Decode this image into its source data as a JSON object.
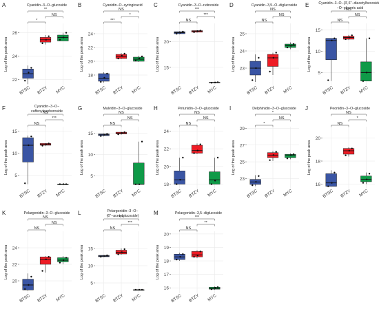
{
  "chart_data": [
    {
      "type": "boxplot",
      "letter": "A",
      "title": [
        "Cyanidin−3−O−glucoside"
      ],
      "ylabel": "Log of the peak area",
      "categories": [
        "BTSC",
        "BTZY",
        "MYC"
      ],
      "ylim": [
        21.5,
        26.8
      ],
      "yticks": [
        22,
        24,
        26
      ],
      "boxes": [
        {
          "q1": 22.1,
          "median": 22.5,
          "q3": 22.9,
          "min": 21.6,
          "max": 23.2,
          "points": [
            21.9,
            22.6,
            23.0
          ]
        },
        {
          "q1": 25.2,
          "median": 25.4,
          "q3": 25.6,
          "min": 25.0,
          "max": 25.8,
          "points": [
            25.1,
            25.4,
            25.7
          ]
        },
        {
          "q1": 25.3,
          "median": 25.6,
          "q3": 25.8,
          "min": 25.3,
          "max": 26.0,
          "points": [
            25.4,
            25.6,
            26.0
          ]
        }
      ],
      "sig": [
        {
          "a": 0,
          "b": 1,
          "label": "*",
          "level": 0
        },
        {
          "a": 1,
          "b": 2,
          "label": "NS",
          "level": 1
        },
        {
          "a": 0,
          "b": 2,
          "label": "**",
          "level": 2
        }
      ]
    },
    {
      "type": "boxplot",
      "letter": "B",
      "title": [
        "Cyanidin−O−syringicacid"
      ],
      "ylabel": "Log of the peak area",
      "categories": [
        "BTSC",
        "BTZY",
        "MYC"
      ],
      "ylim": [
        16.5,
        25.5
      ],
      "yticks": [
        18,
        20,
        22,
        24
      ],
      "boxes": [
        {
          "q1": 17.1,
          "median": 17.5,
          "q3": 18.2,
          "min": 16.9,
          "max": 18.4,
          "points": [
            17.0,
            17.6,
            18.2
          ]
        },
        {
          "q1": 20.4,
          "median": 20.7,
          "q3": 21.0,
          "min": 20.3,
          "max": 21.2,
          "points": [
            20.4,
            20.8,
            21.1
          ]
        },
        {
          "q1": 20.0,
          "median": 20.3,
          "q3": 20.6,
          "min": 19.9,
          "max": 20.8,
          "points": [
            20.1,
            20.4,
            20.7
          ]
        }
      ],
      "sig": [
        {
          "a": 0,
          "b": 1,
          "label": "***",
          "level": 0
        },
        {
          "a": 1,
          "b": 2,
          "label": "*",
          "level": 1
        },
        {
          "a": 0,
          "b": 2,
          "label": "NS",
          "level": 2
        }
      ]
    },
    {
      "type": "boxplot",
      "letter": "C",
      "title": [
        "Cyanidin−3−O−rutinoside"
      ],
      "ylabel": "Log of the peak area",
      "categories": [
        "BTSC",
        "BTZY",
        "MYC"
      ],
      "ylim": [
        11.5,
        23.5
      ],
      "yticks": [
        15,
        20
      ],
      "boxes": [
        {
          "q1": 21.5,
          "median": 21.7,
          "q3": 21.9,
          "min": 21.4,
          "max": 22.0,
          "points": [
            21.5,
            21.7,
            21.9
          ]
        },
        {
          "q1": 21.8,
          "median": 22.0,
          "q3": 22.1,
          "min": 21.7,
          "max": 22.2,
          "points": [
            21.8,
            22.0,
            22.1
          ]
        },
        {
          "q1": 12.0,
          "median": 12.05,
          "q3": 12.1,
          "min": 12.0,
          "max": 12.1,
          "points": [
            12.0,
            12.05,
            12.1
          ]
        }
      ],
      "sig": [
        {
          "a": 0,
          "b": 1,
          "label": "NS",
          "level": 0
        },
        {
          "a": 1,
          "b": 2,
          "label": "***",
          "level": 1
        },
        {
          "a": 0,
          "b": 2,
          "label": "***",
          "level": 2
        }
      ]
    },
    {
      "type": "boxplot",
      "letter": "D",
      "title": [
        "Cyanidin−3,5−O−diglucoside"
      ],
      "ylabel": "Log of the peak area",
      "categories": [
        "BTSC",
        "BTZY",
        "MYC"
      ],
      "ylim": [
        22.0,
        25.6
      ],
      "yticks": [
        23,
        24,
        25
      ],
      "boxes": [
        {
          "q1": 22.6,
          "median": 23.0,
          "q3": 23.4,
          "min": 22.2,
          "max": 23.8,
          "points": [
            22.3,
            23.0,
            23.6
          ]
        },
        {
          "q1": 23.1,
          "median": 23.6,
          "q3": 23.8,
          "min": 22.6,
          "max": 23.9,
          "points": [
            22.8,
            23.6,
            23.9
          ]
        },
        {
          "q1": 24.2,
          "median": 24.3,
          "q3": 24.4,
          "min": 24.1,
          "max": 24.5,
          "points": [
            24.2,
            24.3,
            24.4
          ]
        }
      ],
      "sig": [
        {
          "a": 0,
          "b": 1,
          "label": "NS",
          "level": 0
        },
        {
          "a": 1,
          "b": 2,
          "label": "NS",
          "level": 1
        },
        {
          "a": 0,
          "b": 2,
          "label": "NS",
          "level": 2
        }
      ]
    },
    {
      "type": "boxplot",
      "letter": "E",
      "title": [
        "Cyanidin−3−O−(3',6''−diacetylhexoside)",
        "−O−glyceric acid"
      ],
      "ylabel": "Log of the peak area",
      "categories": [
        "BTSC",
        "BTZY",
        "MYC"
      ],
      "ylim": [
        2.0,
        16.5
      ],
      "yticks": [
        5,
        10,
        15
      ],
      "boxes": [
        {
          "q1": 8.0,
          "median": 12.5,
          "q3": 13.0,
          "min": 3.0,
          "max": 13.0,
          "points": [
            3.2,
            12.5,
            13.0
          ]
        },
        {
          "q1": 12.8,
          "median": 13.2,
          "q3": 13.5,
          "min": 12.6,
          "max": 13.8,
          "points": [
            12.8,
            13.2,
            13.7
          ]
        },
        {
          "q1": 3.0,
          "median": 5.0,
          "q3": 7.5,
          "min": 3.0,
          "max": 13.0,
          "points": [
            3.0,
            5.0,
            13.0
          ]
        }
      ],
      "sig": [
        {
          "a": 0,
          "b": 1,
          "label": "NS",
          "level": 0
        },
        {
          "a": 1,
          "b": 2,
          "label": "NS",
          "level": 1
        },
        {
          "a": 0,
          "b": 2,
          "label": "NS",
          "level": 2
        }
      ]
    },
    {
      "type": "boxplot",
      "letter": "F",
      "title": [
        "Cyanidin−3−O−",
        "caffeoylsophoroside"
      ],
      "ylabel": "Log of the peak area",
      "categories": [
        "BTSC",
        "BTZY",
        "MYC"
      ],
      "ylim": [
        2.0,
        16.0
      ],
      "yticks": [
        5,
        10,
        15
      ],
      "boxes": [
        {
          "q1": 8.0,
          "median": 11.8,
          "q3": 13.5,
          "min": 3.0,
          "max": 14.0,
          "points": [
            3.2,
            11.8,
            13.8
          ]
        },
        {
          "q1": 11.8,
          "median": 12.0,
          "q3": 12.2,
          "min": 11.6,
          "max": 12.3,
          "points": [
            11.7,
            12.0,
            12.2
          ]
        },
        {
          "q1": 3.0,
          "median": 3.0,
          "q3": 3.0,
          "min": 3.0,
          "max": 3.0,
          "points": [
            3.0,
            3.0,
            3.0
          ]
        }
      ],
      "sig": [
        {
          "a": 0,
          "b": 1,
          "label": "NS",
          "level": 0
        },
        {
          "a": 1,
          "b": 2,
          "label": "***",
          "level": 1
        },
        {
          "a": 0,
          "b": 2,
          "label": "NS",
          "level": 2
        }
      ]
    },
    {
      "type": "boxplot",
      "letter": "G",
      "title": [
        "Malvidin−3−O−glucoside"
      ],
      "ylabel": "Log of the peak area",
      "categories": [
        "BTSC",
        "BTZY",
        "MYC"
      ],
      "ylim": [
        2.0,
        16.5
      ],
      "yticks": [
        5,
        10,
        15
      ],
      "boxes": [
        {
          "q1": 14.4,
          "median": 14.6,
          "q3": 14.8,
          "min": 14.2,
          "max": 14.9,
          "points": [
            14.3,
            14.6,
            14.8
          ]
        },
        {
          "q1": 14.8,
          "median": 15.0,
          "q3": 15.2,
          "min": 14.6,
          "max": 15.3,
          "points": [
            14.7,
            15.0,
            15.2
          ]
        },
        {
          "q1": 3.0,
          "median": 3.0,
          "q3": 8.0,
          "min": 3.0,
          "max": 13.0,
          "points": [
            3.0,
            3.0,
            13.0
          ]
        }
      ],
      "sig": [
        {
          "a": 0,
          "b": 1,
          "label": "NS",
          "level": 0
        },
        {
          "a": 1,
          "b": 2,
          "label": "NS",
          "level": 1
        },
        {
          "a": 0,
          "b": 2,
          "label": "NS",
          "level": 2
        }
      ]
    },
    {
      "type": "boxplot",
      "letter": "H",
      "title": [
        "Petunidin−3−O−glucoside"
      ],
      "ylabel": "Log of the peak area",
      "categories": [
        "BTSC",
        "BTZY",
        "MYC"
      ],
      "ylim": [
        17.5,
        24.5
      ],
      "yticks": [
        18,
        20,
        22,
        24
      ],
      "boxes": [
        {
          "q1": 18.0,
          "median": 18.5,
          "q3": 19.5,
          "min": 18.0,
          "max": 21.0,
          "points": [
            18.0,
            18.5,
            21.0
          ]
        },
        {
          "q1": 21.5,
          "median": 21.8,
          "q3": 22.4,
          "min": 21.4,
          "max": 22.6,
          "points": [
            21.5,
            21.8,
            22.5
          ]
        },
        {
          "q1": 18.0,
          "median": 18.5,
          "q3": 19.4,
          "min": 18.0,
          "max": 21.0,
          "points": [
            18.0,
            18.4,
            21.0
          ]
        }
      ],
      "sig": [
        {
          "a": 0,
          "b": 1,
          "label": "NS",
          "level": 0
        },
        {
          "a": 1,
          "b": 2,
          "label": "NS",
          "level": 1
        },
        {
          "a": 0,
          "b": 2,
          "label": "NS",
          "level": 2
        }
      ]
    },
    {
      "type": "boxplot",
      "letter": "I",
      "title": [
        "Delphinidin−3−O−glucoside"
      ],
      "ylabel": "Log of the peak area",
      "categories": [
        "BTSC",
        "BTZY",
        "MYC"
      ],
      "ylim": [
        21.8,
        29.2
      ],
      "yticks": [
        23,
        25,
        27,
        29
      ],
      "boxes": [
        {
          "q1": 22.3,
          "median": 22.6,
          "q3": 22.9,
          "min": 22.1,
          "max": 23.4,
          "points": [
            22.2,
            22.6,
            23.3
          ]
        },
        {
          "q1": 25.5,
          "median": 25.8,
          "q3": 26.1,
          "min": 25.1,
          "max": 26.3,
          "points": [
            25.2,
            25.8,
            26.2
          ]
        },
        {
          "q1": 25.5,
          "median": 25.8,
          "q3": 25.9,
          "min": 25.3,
          "max": 26.0,
          "points": [
            25.4,
            25.8,
            25.9
          ]
        }
      ],
      "sig": [
        {
          "a": 0,
          "b": 1,
          "label": "*",
          "level": 0
        },
        {
          "a": 1,
          "b": 2,
          "label": "NS",
          "level": 1
        },
        {
          "a": 0,
          "b": 2,
          "label": "*",
          "level": 2
        }
      ]
    },
    {
      "type": "boxplot",
      "letter": "J",
      "title": [
        "Peonidin−3−O−glucoside"
      ],
      "ylabel": "Log of the peak area",
      "categories": [
        "BTSC",
        "BTZY",
        "MYC"
      ],
      "ylim": [
        15.6,
        21.0
      ],
      "yticks": [
        16,
        18,
        20
      ],
      "boxes": [
        {
          "q1": 15.8,
          "median": 16.1,
          "q3": 16.9,
          "min": 15.8,
          "max": 17.2,
          "points": [
            15.8,
            16.1,
            17.0
          ]
        },
        {
          "q1": 18.6,
          "median": 18.9,
          "q3": 19.1,
          "min": 18.4,
          "max": 19.2,
          "points": [
            18.5,
            18.9,
            19.1
          ]
        },
        {
          "q1": 16.2,
          "median": 16.4,
          "q3": 16.7,
          "min": 16.0,
          "max": 17.0,
          "points": [
            16.1,
            16.4,
            16.9
          ]
        }
      ],
      "sig": [
        {
          "a": 0,
          "b": 1,
          "label": "NS",
          "level": 0
        },
        {
          "a": 1,
          "b": 2,
          "label": "*",
          "level": 1
        },
        {
          "a": 0,
          "b": 2,
          "label": "NS",
          "level": 2
        }
      ]
    },
    {
      "type": "boxplot",
      "letter": "K",
      "title": [
        "Pelargonidin−3−O−glucoside"
      ],
      "ylabel": "Log of the peak area",
      "categories": [
        "BTSC",
        "BTZY",
        "MYC"
      ],
      "ylim": [
        18.5,
        26.0
      ],
      "yticks": [
        20,
        22,
        24
      ],
      "boxes": [
        {
          "q1": 18.9,
          "median": 19.5,
          "q3": 20.2,
          "min": 18.8,
          "max": 20.9,
          "points": [
            19.0,
            19.5,
            20.5
          ]
        },
        {
          "q1": 22.0,
          "median": 22.6,
          "q3": 22.9,
          "min": 21.0,
          "max": 23.0,
          "points": [
            21.2,
            22.6,
            22.9
          ]
        },
        {
          "q1": 22.3,
          "median": 22.5,
          "q3": 22.8,
          "min": 22.0,
          "max": 23.0,
          "points": [
            22.2,
            22.5,
            22.8
          ]
        }
      ],
      "sig": [
        {
          "a": 0,
          "b": 1,
          "label": "NS",
          "level": 0
        },
        {
          "a": 1,
          "b": 2,
          "label": "NS",
          "level": 1
        },
        {
          "a": 0,
          "b": 2,
          "label": "NS",
          "level": 2
        }
      ]
    },
    {
      "type": "boxplot",
      "letter": "L",
      "title": [
        "Pelargonidin−3−O−",
        "(6''−acetylglucoside)"
      ],
      "ylabel": "Log of the peak area",
      "categories": [
        "BTSC",
        "BTZY",
        "MYC"
      ],
      "ylim": [
        2.0,
        20.0
      ],
      "yticks": [
        5,
        10,
        15
      ],
      "boxes": [
        {
          "q1": 12.6,
          "median": 12.8,
          "q3": 13.0,
          "min": 12.5,
          "max": 13.1,
          "points": [
            12.6,
            12.8,
            13.0
          ]
        },
        {
          "q1": 13.4,
          "median": 13.9,
          "q3": 14.5,
          "min": 13.2,
          "max": 15.0,
          "points": [
            13.3,
            13.9,
            14.8
          ]
        },
        {
          "q1": 3.0,
          "median": 3.0,
          "q3": 3.0,
          "min": 3.0,
          "max": 3.0,
          "points": [
            3.0,
            3.0,
            3.0
          ]
        }
      ],
      "sig": [
        {
          "a": 0,
          "b": 1,
          "label": "NS",
          "level": 0
        },
        {
          "a": 1,
          "b": 2,
          "label": "***",
          "level": 1
        },
        {
          "a": 0,
          "b": 2,
          "label": "***",
          "level": 2
        }
      ]
    },
    {
      "type": "boxplot",
      "letter": "M",
      "title": [
        "Pelargonidin−3,5−diglucoside"
      ],
      "ylabel": "Log of the peak area",
      "categories": [
        "BTSC",
        "BTZY",
        "MYC"
      ],
      "ylim": [
        15.6,
        20.2
      ],
      "yticks": [
        16,
        17,
        18,
        19,
        20
      ],
      "boxes": [
        {
          "q1": 18.1,
          "median": 18.3,
          "q3": 18.5,
          "min": 18.0,
          "max": 18.6,
          "points": [
            18.1,
            18.3,
            18.5
          ]
        },
        {
          "q1": 18.3,
          "median": 18.45,
          "q3": 18.7,
          "min": 18.2,
          "max": 18.8,
          "points": [
            18.3,
            18.4,
            18.7
          ]
        },
        {
          "q1": 15.9,
          "median": 15.95,
          "q3": 16.05,
          "min": 15.85,
          "max": 16.1,
          "points": [
            15.9,
            16.0,
            16.05
          ]
        }
      ],
      "sig": [
        {
          "a": 0,
          "b": 1,
          "label": "NS",
          "level": 0
        },
        {
          "a": 1,
          "b": 2,
          "label": "**",
          "level": 1
        },
        {
          "a": 0,
          "b": 2,
          "label": "***",
          "level": 2
        }
      ]
    }
  ],
  "colors": {
    "BTSC": "#3a55a4",
    "BTZY": "#ee1c25",
    "MYC": "#0f9a48",
    "panel_bg": "#ffffff",
    "grid": "#e6e6e6",
    "text": "#222222"
  }
}
